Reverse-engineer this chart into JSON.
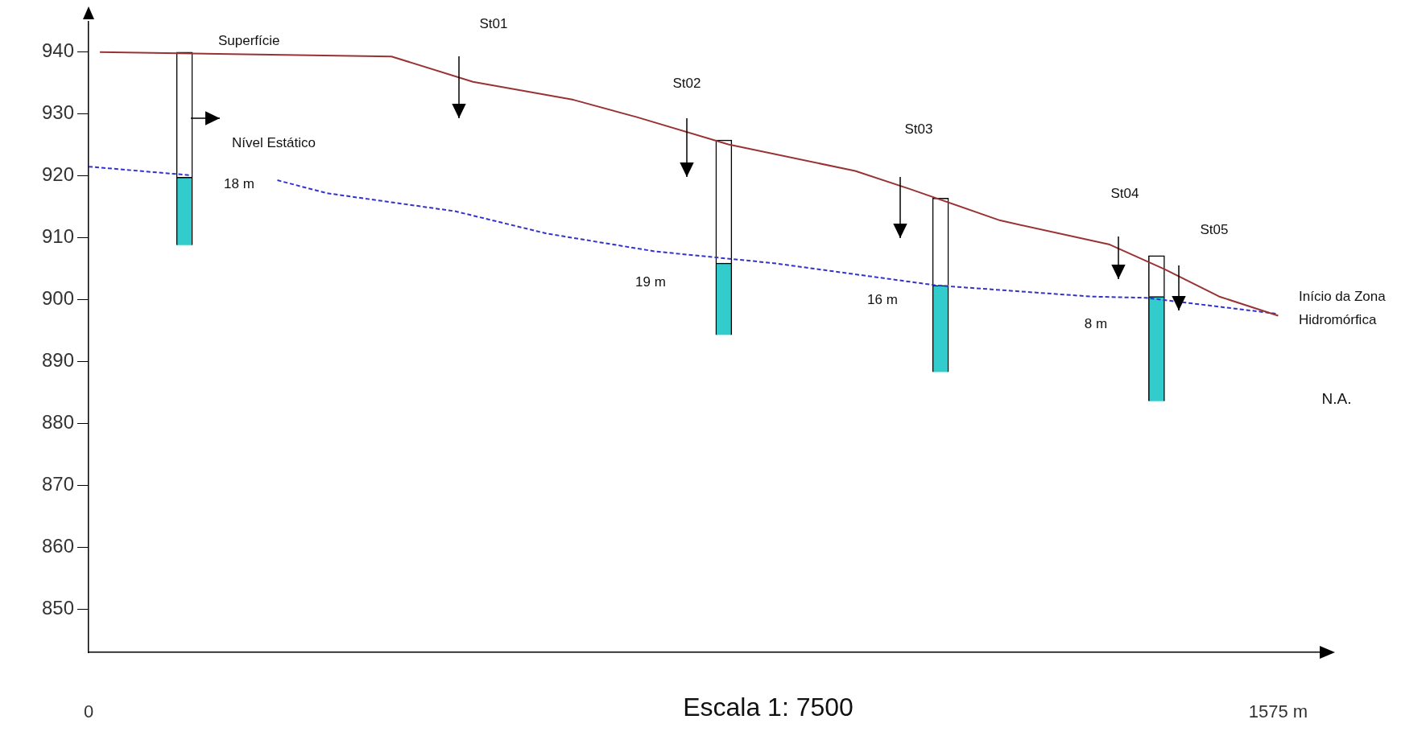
{
  "chart_data": {
    "type": "bar",
    "xlim": [
      0,
      1630
    ],
    "xticks": [
      0,
      {
        "value": 1575,
        "label": "1575 m"
      }
    ],
    "ylim": [
      843,
      945
    ],
    "yticks": [
      850,
      860,
      870,
      880,
      890,
      900,
      910,
      920,
      930,
      940
    ],
    "grid": false,
    "marker": "none",
    "series": [
      {
        "color": "#33cccc",
        "x": [
          127,
          841,
          1128,
          1414
        ],
        "base": [
          908.8,
          894.3,
          888.3,
          883.6
        ],
        "values": [
          11.0,
          11.6,
          14.0,
          16.9
        ]
      },
      {
        "color": "#ffffff",
        "x": [
          127,
          841,
          1128,
          1414
        ],
        "base": [
          919.8,
          905.9,
          902.3,
          900.5
        ],
        "values": [
          20.2,
          19.9,
          14.1,
          6.6
        ]
      },
      {
        "type": "line",
        "color": "#993333",
        "x": [
          15,
          401,
          509,
          642,
          726,
          847,
          1015,
          1087,
          1207,
          1352,
          1425,
          1497,
          1575
        ],
        "values": [
          940,
          939.3,
          935.2,
          932.3,
          929.5,
          925.1,
          920.8,
          917.9,
          912.8,
          908.9,
          904.9,
          900.5,
          897.4
        ]
      },
      {
        "type": "line",
        "color": "#3333cc",
        "line_style": "dashed",
        "x": [
          0,
          136,
          190,
          250,
          316,
          485,
          606,
          750,
          907,
          1123,
          1328,
          1400,
          1575
        ],
        "values": [
          921.5,
          920.1,
          null,
          919.3,
          917.2,
          914.3,
          910.7,
          907.8,
          905.9,
          902.3,
          900.5,
          900.3,
          897.7
        ]
      }
    ],
    "annotations": [
      "Superfície",
      "St01",
      "St02",
      "Nível Estático",
      "18 m",
      "St03",
      "19 m",
      "16 m",
      "St04",
      "St05",
      "Início da Zona Hidromórfica",
      "8 m",
      "N.A.",
      "Escala 1: 7500"
    ]
  }
}
